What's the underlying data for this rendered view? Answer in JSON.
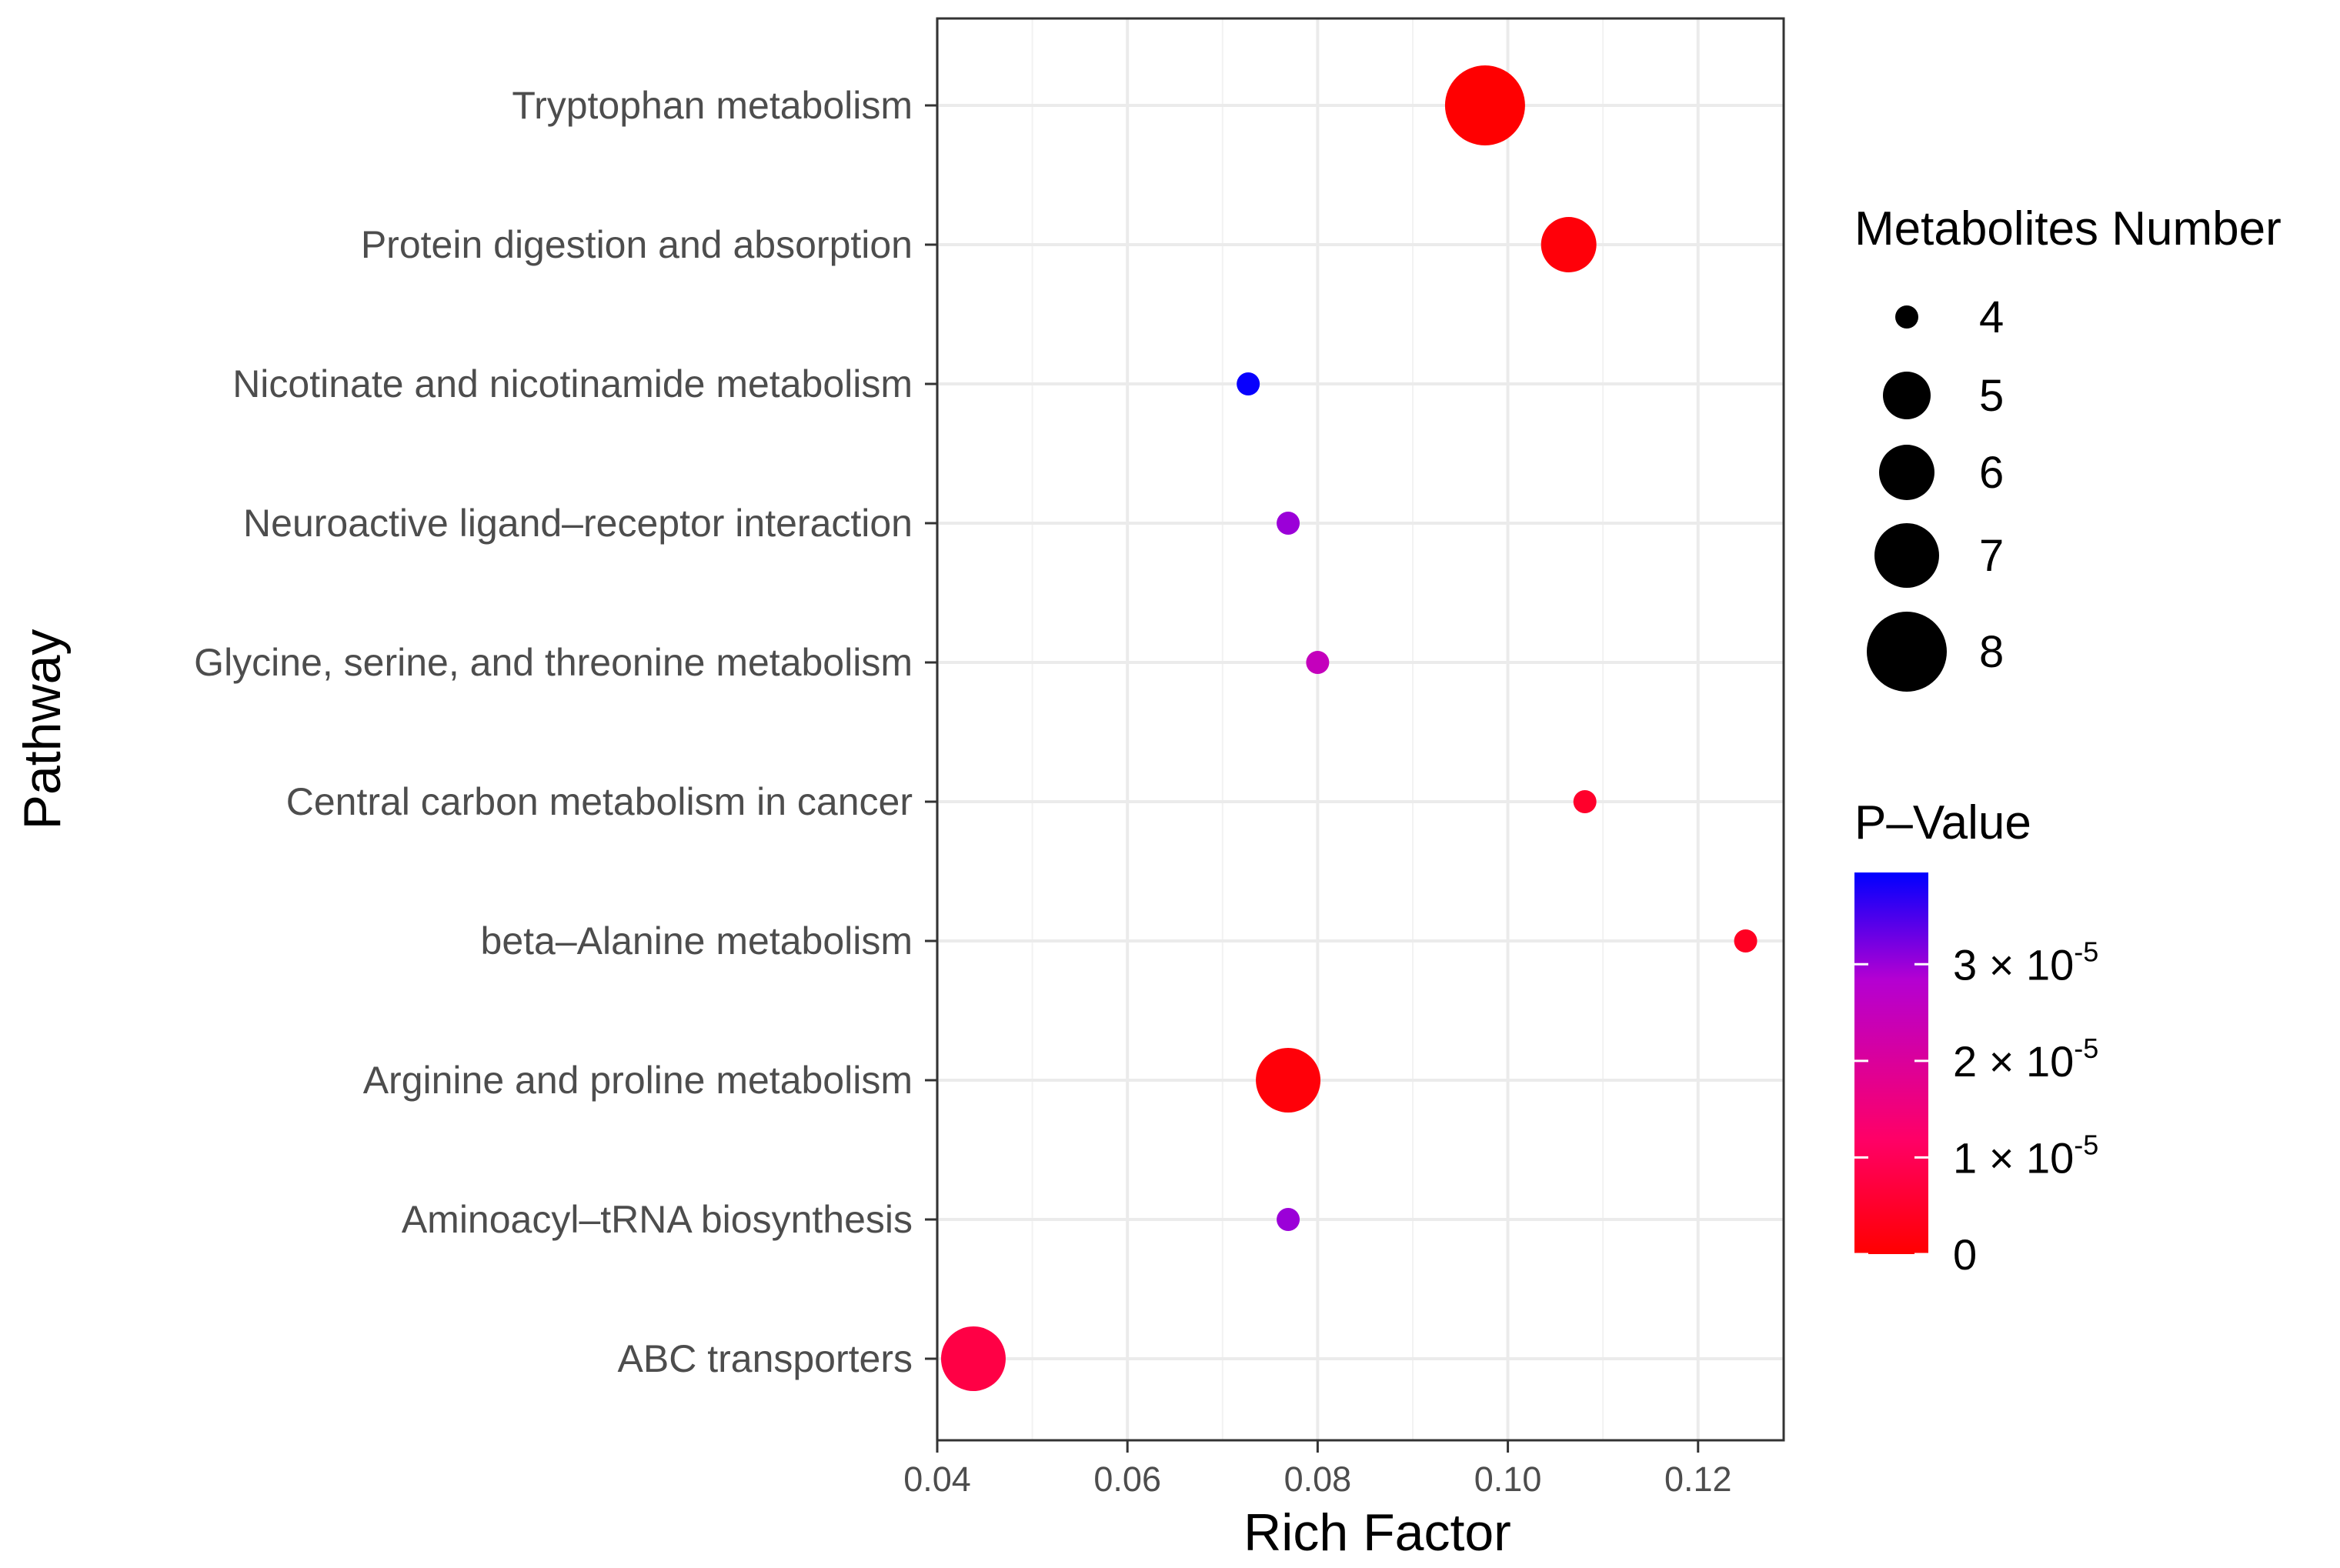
{
  "chart_data": {
    "type": "scatter",
    "subtype": "bubble",
    "xlabel": "Rich Factor",
    "ylabel": "Pathway",
    "xlim": [
      0.04,
      0.129
    ],
    "xticks": [
      0.04,
      0.06,
      0.08,
      0.1,
      0.12
    ],
    "xtick_labels": [
      "0.04",
      "0.06",
      "0.08",
      "0.10",
      "0.12"
    ],
    "grid": true,
    "categories": [
      "Tryptophan metabolism",
      "Protein digestion and absorption",
      "Nicotinate and nicotinamide metabolism",
      "Neuroactive ligand–receptor interaction",
      "Glycine, serine, and threonine metabolism",
      "Central carbon metabolism in cancer",
      "beta–Alanine metabolism",
      "Arginine and proline metabolism",
      "Aminoacyl–tRNA biosynthesis",
      "ABC transporters"
    ],
    "points": [
      {
        "pathway": "Tryptophan metabolism",
        "rich_factor": 0.0976,
        "metabolites_number": 8,
        "p_value": 1e-07
      },
      {
        "pathway": "Protein digestion and absorption",
        "rich_factor": 0.1064,
        "metabolites_number": 6,
        "p_value": 1e-06
      },
      {
        "pathway": "Nicotinate and nicotinamide metabolism",
        "rich_factor": 0.0727,
        "metabolites_number": 4,
        "p_value": 3.9e-05
      },
      {
        "pathway": "Neuroactive ligand–receptor interaction",
        "rich_factor": 0.0769,
        "metabolites_number": 4,
        "p_value": 3e-05
      },
      {
        "pathway": "Glycine, serine, and threonine metabolism",
        "rich_factor": 0.08,
        "metabolites_number": 4,
        "p_value": 2.5e-05
      },
      {
        "pathway": "Central carbon metabolism in cancer",
        "rich_factor": 0.1081,
        "metabolites_number": 4,
        "p_value": 5e-06
      },
      {
        "pathway": "beta–Alanine metabolism",
        "rich_factor": 0.125,
        "metabolites_number": 4,
        "p_value": 4e-06
      },
      {
        "pathway": "Arginine and proline metabolism",
        "rich_factor": 0.0769,
        "metabolites_number": 7,
        "p_value": 1e-06
      },
      {
        "pathway": "Aminoacyl–tRNA biosynthesis",
        "rich_factor": 0.0769,
        "metabolites_number": 4,
        "p_value": 3e-05
      },
      {
        "pathway": "ABC transporters",
        "rich_factor": 0.0438,
        "metabolites_number": 7,
        "p_value": 8e-06
      }
    ],
    "size_legend": {
      "title": "Metabolites Number",
      "values": [
        4,
        5,
        6,
        7,
        8
      ],
      "labels": [
        "4",
        "5",
        "6",
        "7",
        "8"
      ]
    },
    "color_legend": {
      "title": "P–Value",
      "range": [
        0,
        3.95e-05
      ],
      "low_color": "#ff0000",
      "mid_color": "#ff0066",
      "mid2_color": "#b400d2",
      "high_color": "#0000ff",
      "ticks": [
        {
          "value": 3e-05,
          "base": "3 × 10",
          "exp": "-5"
        },
        {
          "value": 2e-05,
          "base": "2 × 10",
          "exp": "-5"
        },
        {
          "value": 1e-05,
          "base": "1 × 10",
          "exp": "-5"
        },
        {
          "value": 0,
          "base": "0",
          "exp": ""
        }
      ]
    }
  }
}
